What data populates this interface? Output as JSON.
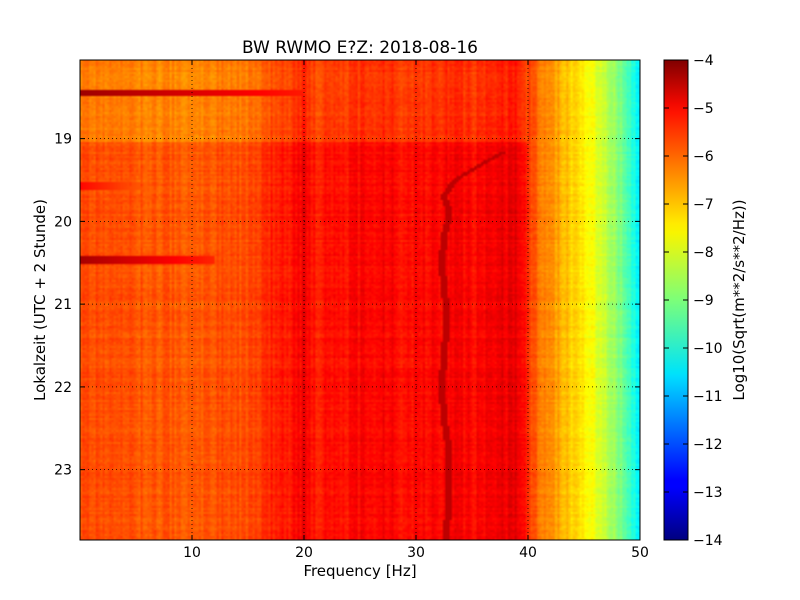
{
  "chart_data": {
    "type": "heatmap",
    "title": "BW RWMO E?Z: 2018-08-16",
    "xlabel": "Frequency [Hz]",
    "ylabel": "Lokalzeit (UTC + 2 Stunde)",
    "xlim": [
      0,
      50
    ],
    "ylim": [
      18.05,
      23.85
    ],
    "y_inverted": true,
    "x_ticks": [
      10,
      20,
      30,
      40,
      50
    ],
    "x_tick_labels": [
      "10",
      "20",
      "30",
      "40",
      "50"
    ],
    "y_ticks": [
      19,
      20,
      21,
      22,
      23
    ],
    "y_tick_labels": [
      "19",
      "20",
      "21",
      "22",
      "23"
    ],
    "grid": true,
    "colormap": "jet",
    "colorbar": {
      "label": "Log10(Sqrt(m**2/s**2/Hz))",
      "range": [
        -14,
        -4
      ],
      "ticks": [
        -4,
        -5,
        -6,
        -7,
        -8,
        -9,
        -10,
        -11,
        -12,
        -13,
        -14
      ],
      "tick_labels": [
        "−4",
        "−5",
        "−6",
        "−7",
        "−8",
        "−9",
        "−10",
        "−11",
        "−12",
        "−13",
        "−14"
      ]
    },
    "spectrum_profile": {
      "frequency_hz": [
        0,
        5,
        10,
        15,
        17,
        19,
        20,
        21,
        23,
        25,
        27,
        29,
        31,
        33,
        35,
        37,
        39,
        40,
        41,
        42,
        43,
        44,
        45,
        46,
        47,
        48,
        49,
        50
      ],
      "log_amplitude": [
        -6.0,
        -6.1,
        -6.1,
        -6.0,
        -5.6,
        -5.4,
        -5.1,
        -5.5,
        -5.4,
        -5.3,
        -5.2,
        -5.4,
        -5.3,
        -5.2,
        -5.3,
        -5.2,
        -5.0,
        -5.7,
        -6.3,
        -6.7,
        -7.0,
        -7.3,
        -7.6,
        -8.0,
        -8.4,
        -8.9,
        -9.6,
        -10.5
      ]
    },
    "tremor_line": {
      "time": [
        19.15,
        19.3,
        19.5,
        19.7,
        19.9,
        20.2,
        20.5,
        20.8,
        21.2,
        21.6,
        22.0,
        22.4,
        22.8,
        23.2,
        23.6,
        23.85
      ],
      "frequency_hz": [
        38.0,
        36.0,
        33.5,
        32.5,
        33.0,
        32.5,
        32.3,
        32.5,
        32.8,
        32.5,
        32.3,
        32.5,
        33.0,
        33.0,
        32.8,
        32.7
      ]
    },
    "events": [
      {
        "time": 18.45,
        "freq_max_hz": 20,
        "log_amplitude": -4.3
      },
      {
        "time": 20.47,
        "freq_max_hz": 12,
        "log_amplitude": -4.4
      },
      {
        "time": 19.57,
        "freq_max_hz": 8,
        "log_amplitude": -5.3
      }
    ],
    "quiet_period": {
      "time_end": 19.05,
      "log_amplitude_offset": -0.45
    }
  }
}
